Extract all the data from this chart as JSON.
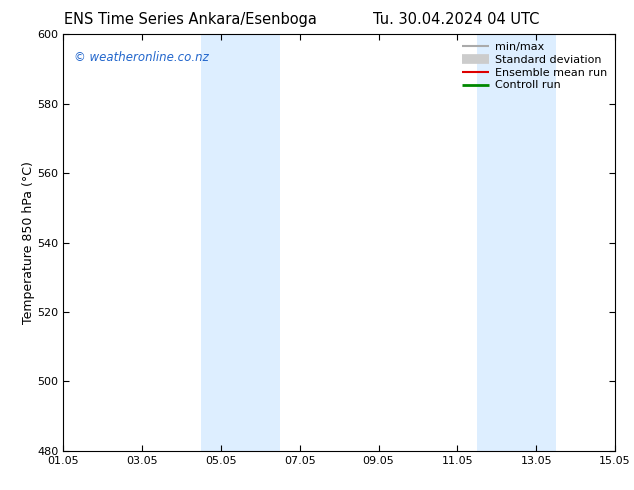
{
  "title_left": "ENS Time Series Ankara/Esenboga",
  "title_right": "Tu. 30.04.2024 04 UTC",
  "ylabel": "Temperature 850 hPa (°C)",
  "ylim": [
    480,
    600
  ],
  "yticks": [
    480,
    500,
    520,
    540,
    560,
    580,
    600
  ],
  "xtick_labels": [
    "01.05",
    "03.05",
    "05.05",
    "07.05",
    "09.05",
    "11.05",
    "13.05",
    "15.05"
  ],
  "xtick_positions": [
    0,
    2,
    4,
    6,
    8,
    10,
    12,
    14
  ],
  "xlim": [
    0,
    14
  ],
  "shaded_bands": [
    {
      "x_start": 3.5,
      "x_end": 5.5,
      "color": "#ddeeff"
    },
    {
      "x_start": 10.5,
      "x_end": 12.5,
      "color": "#ddeeff"
    }
  ],
  "watermark": "© weatheronline.co.nz",
  "watermark_color": "#2266cc",
  "legend_items": [
    {
      "label": "min/max",
      "color": "#aaaaaa",
      "lw": 1.5,
      "type": "line"
    },
    {
      "label": "Standard deviation",
      "color": "#cccccc",
      "lw": 7,
      "type": "line"
    },
    {
      "label": "Ensemble mean run",
      "color": "#dd0000",
      "lw": 1.5,
      "type": "line"
    },
    {
      "label": "Controll run",
      "color": "#008800",
      "lw": 2,
      "type": "line"
    }
  ],
  "bg_color": "#ffffff",
  "plot_bg_color": "#ffffff",
  "title_fontsize": 10.5,
  "tick_fontsize": 8,
  "ylabel_fontsize": 9,
  "legend_fontsize": 8
}
